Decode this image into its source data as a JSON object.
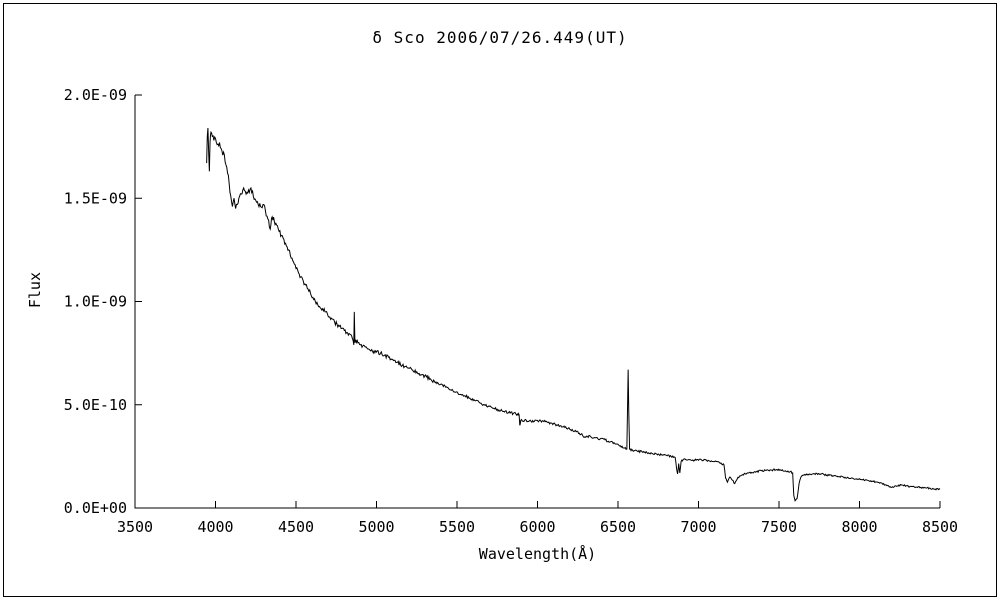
{
  "chart_data": {
    "type": "line",
    "title": "δ  Sco   2006/07/26.449(UT)",
    "xlabel": "Wavelength(Å)",
    "ylabel": "Flux",
    "xlim": [
      3500,
      8500
    ],
    "ylim_e9": [
      0,
      2.0
    ],
    "flux_unit": "values are flux in units of 1e-9",
    "x_tick_values": [
      3500,
      4000,
      4500,
      5000,
      5500,
      6000,
      6500,
      7000,
      7500,
      8000,
      8500
    ],
    "x_tick_labels": [
      "3500",
      "4000",
      "4500",
      "5000",
      "5500",
      "6000",
      "6500",
      "7000",
      "7500",
      "8000",
      "8500"
    ],
    "y_tick_values_e9": [
      0,
      0.5,
      1.0,
      1.5,
      2.0
    ],
    "y_tick_labels": [
      "0.0E+00",
      "5.0E-10",
      "1.0E-09",
      "1.5E-09",
      "2.0E-09"
    ],
    "legend": "none",
    "grid": false,
    "style": {
      "line_color": "#000000",
      "axis_color": "#000000",
      "noise_amp_abs": 0.003,
      "noise_amp_rel": 0.008,
      "noise_step": 5,
      "seed": 20060726
    },
    "annotations": [
      "H-alpha emission spike near 6563",
      "H-beta emission spike near 4861",
      "telluric absorption bands near 6870, 7200, 7600",
      "deep atmospheric A-band dip at 7600"
    ],
    "series": [
      {
        "name": "delta Sco spectrum",
        "points": [
          [
            3945,
            1.67
          ],
          [
            3949,
            1.8
          ],
          [
            3953,
            1.84
          ],
          [
            3958,
            1.71
          ],
          [
            3962,
            1.63
          ],
          [
            3966,
            1.77
          ],
          [
            3972,
            1.82
          ],
          [
            3980,
            1.8
          ],
          [
            3990,
            1.78
          ],
          [
            4000,
            1.79
          ],
          [
            4010,
            1.76
          ],
          [
            4025,
            1.77
          ],
          [
            4040,
            1.73
          ],
          [
            4055,
            1.71
          ],
          [
            4070,
            1.65
          ],
          [
            4085,
            1.57
          ],
          [
            4095,
            1.51
          ],
          [
            4105,
            1.46
          ],
          [
            4115,
            1.5
          ],
          [
            4125,
            1.45
          ],
          [
            4135,
            1.47
          ],
          [
            4145,
            1.5
          ],
          [
            4160,
            1.52
          ],
          [
            4175,
            1.55
          ],
          [
            4190,
            1.52
          ],
          [
            4205,
            1.54
          ],
          [
            4220,
            1.55
          ],
          [
            4235,
            1.51
          ],
          [
            4250,
            1.49
          ],
          [
            4265,
            1.47
          ],
          [
            4280,
            1.46
          ],
          [
            4295,
            1.47
          ],
          [
            4310,
            1.44
          ],
          [
            4325,
            1.4
          ],
          [
            4340,
            1.35
          ],
          [
            4352,
            1.41
          ],
          [
            4365,
            1.39
          ],
          [
            4380,
            1.37
          ],
          [
            4395,
            1.34
          ],
          [
            4410,
            1.32
          ],
          [
            4425,
            1.3
          ],
          [
            4440,
            1.27
          ],
          [
            4455,
            1.25
          ],
          [
            4470,
            1.21
          ],
          [
            4485,
            1.19
          ],
          [
            4500,
            1.16
          ],
          [
            4515,
            1.14
          ],
          [
            4530,
            1.12
          ],
          [
            4545,
            1.1
          ],
          [
            4560,
            1.08
          ],
          [
            4575,
            1.06
          ],
          [
            4590,
            1.04
          ],
          [
            4605,
            1.02
          ],
          [
            4620,
            1.0
          ],
          [
            4635,
            0.985
          ],
          [
            4650,
            0.97
          ],
          [
            4665,
            0.965
          ],
          [
            4680,
            0.95
          ],
          [
            4695,
            0.94
          ],
          [
            4710,
            0.925
          ],
          [
            4725,
            0.915
          ],
          [
            4740,
            0.9
          ],
          [
            4755,
            0.89
          ],
          [
            4770,
            0.88
          ],
          [
            4785,
            0.87
          ],
          [
            4800,
            0.86
          ],
          [
            4815,
            0.85
          ],
          [
            4830,
            0.845
          ],
          [
            4845,
            0.835
          ],
          [
            4855,
            0.81
          ],
          [
            4859,
            0.79
          ],
          [
            4862,
            0.95
          ],
          [
            4866,
            0.8
          ],
          [
            4872,
            0.815
          ],
          [
            4885,
            0.8
          ],
          [
            4900,
            0.79
          ],
          [
            4915,
            0.785
          ],
          [
            4930,
            0.78
          ],
          [
            4950,
            0.77
          ],
          [
            4975,
            0.76
          ],
          [
            5000,
            0.755
          ],
          [
            5025,
            0.75
          ],
          [
            5050,
            0.74
          ],
          [
            5075,
            0.73
          ],
          [
            5100,
            0.72
          ],
          [
            5130,
            0.705
          ],
          [
            5160,
            0.69
          ],
          [
            5190,
            0.68
          ],
          [
            5220,
            0.67
          ],
          [
            5250,
            0.66
          ],
          [
            5280,
            0.645
          ],
          [
            5310,
            0.635
          ],
          [
            5340,
            0.62
          ],
          [
            5370,
            0.61
          ],
          [
            5400,
            0.6
          ],
          [
            5430,
            0.585
          ],
          [
            5460,
            0.572
          ],
          [
            5490,
            0.56
          ],
          [
            5520,
            0.55
          ],
          [
            5550,
            0.543
          ],
          [
            5580,
            0.532
          ],
          [
            5610,
            0.52
          ],
          [
            5640,
            0.51
          ],
          [
            5670,
            0.5
          ],
          [
            5700,
            0.492
          ],
          [
            5730,
            0.483
          ],
          [
            5760,
            0.475
          ],
          [
            5790,
            0.468
          ],
          [
            5820,
            0.462
          ],
          [
            5850,
            0.458
          ],
          [
            5875,
            0.455
          ],
          [
            5886,
            0.45
          ],
          [
            5890,
            0.4
          ],
          [
            5896,
            0.425
          ],
          [
            5910,
            0.42
          ],
          [
            5930,
            0.425
          ],
          [
            5960,
            0.42
          ],
          [
            5990,
            0.425
          ],
          [
            6020,
            0.422
          ],
          [
            6050,
            0.418
          ],
          [
            6080,
            0.412
          ],
          [
            6110,
            0.405
          ],
          [
            6140,
            0.398
          ],
          [
            6170,
            0.39
          ],
          [
            6200,
            0.382
          ],
          [
            6230,
            0.372
          ],
          [
            6260,
            0.362
          ],
          [
            6280,
            0.352
          ],
          [
            6290,
            0.342
          ],
          [
            6305,
            0.348
          ],
          [
            6330,
            0.345
          ],
          [
            6360,
            0.34
          ],
          [
            6390,
            0.335
          ],
          [
            6420,
            0.33
          ],
          [
            6450,
            0.32
          ],
          [
            6480,
            0.312
          ],
          [
            6510,
            0.3
          ],
          [
            6540,
            0.29
          ],
          [
            6555,
            0.285
          ],
          [
            6560,
            0.52
          ],
          [
            6563,
            0.67
          ],
          [
            6567,
            0.46
          ],
          [
            6572,
            0.285
          ],
          [
            6590,
            0.28
          ],
          [
            6620,
            0.275
          ],
          [
            6650,
            0.272
          ],
          [
            6680,
            0.268
          ],
          [
            6710,
            0.265
          ],
          [
            6740,
            0.262
          ],
          [
            6770,
            0.258
          ],
          [
            6800,
            0.255
          ],
          [
            6830,
            0.25
          ],
          [
            6855,
            0.245
          ],
          [
            6864,
            0.19
          ],
          [
            6870,
            0.165
          ],
          [
            6877,
            0.215
          ],
          [
            6884,
            0.17
          ],
          [
            6892,
            0.225
          ],
          [
            6905,
            0.235
          ],
          [
            6930,
            0.232
          ],
          [
            6960,
            0.23
          ],
          [
            6990,
            0.235
          ],
          [
            7020,
            0.232
          ],
          [
            7050,
            0.23
          ],
          [
            7080,
            0.228
          ],
          [
            7110,
            0.225
          ],
          [
            7140,
            0.218
          ],
          [
            7158,
            0.21
          ],
          [
            7168,
            0.145
          ],
          [
            7180,
            0.125
          ],
          [
            7195,
            0.15
          ],
          [
            7210,
            0.135
          ],
          [
            7225,
            0.118
          ],
          [
            7240,
            0.14
          ],
          [
            7255,
            0.155
          ],
          [
            7275,
            0.162
          ],
          [
            7300,
            0.168
          ],
          [
            7330,
            0.172
          ],
          [
            7360,
            0.176
          ],
          [
            7390,
            0.18
          ],
          [
            7420,
            0.182
          ],
          [
            7450,
            0.184
          ],
          [
            7480,
            0.185
          ],
          [
            7510,
            0.183
          ],
          [
            7540,
            0.18
          ],
          [
            7570,
            0.177
          ],
          [
            7585,
            0.17
          ],
          [
            7592,
            0.06
          ],
          [
            7600,
            0.035
          ],
          [
            7612,
            0.045
          ],
          [
            7625,
            0.12
          ],
          [
            7640,
            0.155
          ],
          [
            7660,
            0.162
          ],
          [
            7690,
            0.165
          ],
          [
            7720,
            0.166
          ],
          [
            7750,
            0.165
          ],
          [
            7780,
            0.162
          ],
          [
            7810,
            0.158
          ],
          [
            7840,
            0.155
          ],
          [
            7870,
            0.152
          ],
          [
            7900,
            0.15
          ],
          [
            7930,
            0.147
          ],
          [
            7960,
            0.143
          ],
          [
            7990,
            0.14
          ],
          [
            8020,
            0.137
          ],
          [
            8050,
            0.134
          ],
          [
            8080,
            0.13
          ],
          [
            8110,
            0.126
          ],
          [
            8140,
            0.12
          ],
          [
            8170,
            0.108
          ],
          [
            8200,
            0.1
          ],
          [
            8230,
            0.105
          ],
          [
            8260,
            0.112
          ],
          [
            8290,
            0.108
          ],
          [
            8320,
            0.104
          ],
          [
            8350,
            0.101
          ],
          [
            8380,
            0.1
          ],
          [
            8410,
            0.098
          ],
          [
            8440,
            0.095
          ],
          [
            8470,
            0.092
          ],
          [
            8500,
            0.09
          ]
        ]
      }
    ]
  }
}
